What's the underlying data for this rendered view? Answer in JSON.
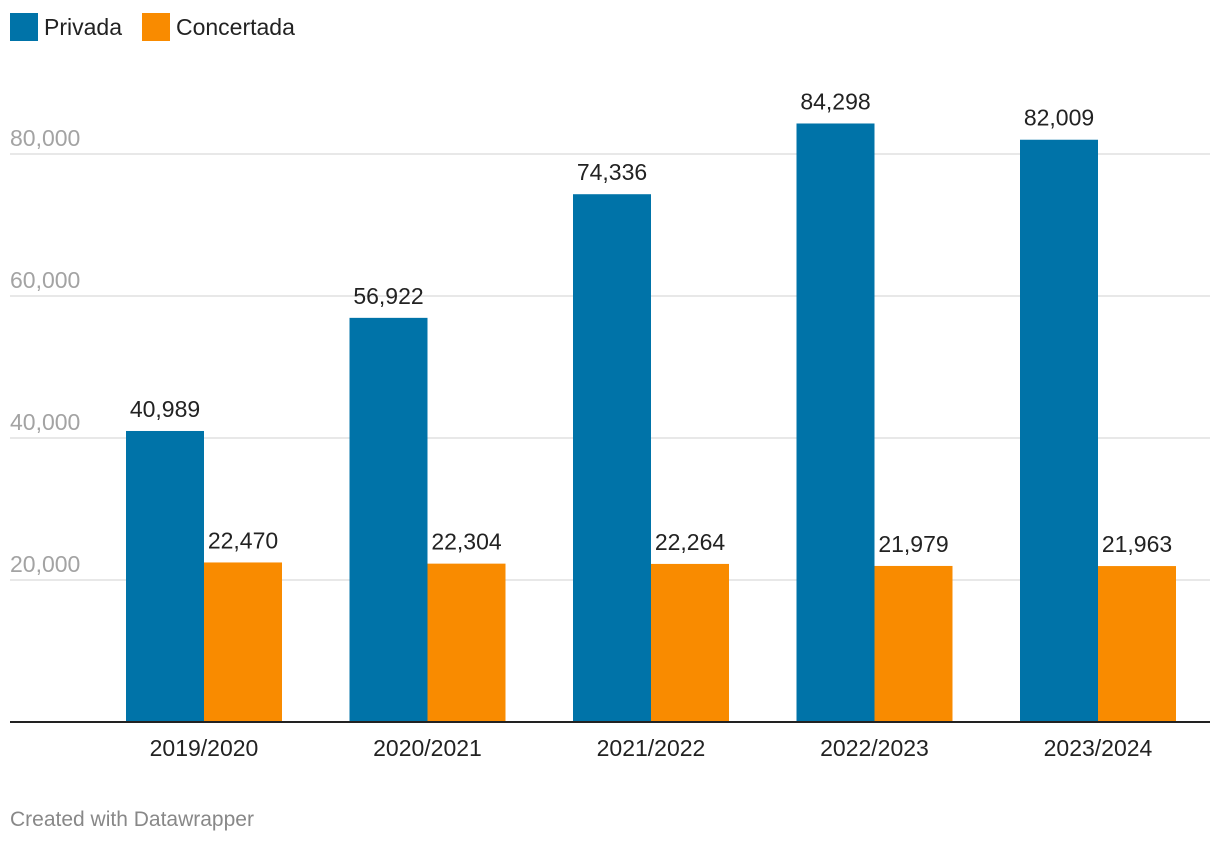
{
  "legend": {
    "items": [
      {
        "label": "Privada",
        "color": "#0073a8"
      },
      {
        "label": "Concertada",
        "color": "#f98b00"
      }
    ]
  },
  "footer": {
    "credit": "Created with Datawrapper"
  },
  "chart_data": {
    "type": "bar",
    "title": "",
    "xlabel": "",
    "ylabel": "",
    "categories": [
      "2019/2020",
      "2020/2021",
      "2021/2022",
      "2022/2023",
      "2023/2024"
    ],
    "series": [
      {
        "name": "Privada",
        "color": "#0073a8",
        "values": [
          40989,
          56922,
          74336,
          84298,
          82009
        ],
        "labels": [
          "40,989",
          "56,922",
          "74,336",
          "84,298",
          "82,009"
        ]
      },
      {
        "name": "Concertada",
        "color": "#f98b00",
        "values": [
          22470,
          22304,
          22264,
          21979,
          21963
        ],
        "labels": [
          "22,470",
          "22,304",
          "22,264",
          "21,979",
          "21,963"
        ]
      }
    ],
    "ylim": [
      0,
      88000
    ],
    "yticks": [
      20000,
      40000,
      60000,
      80000
    ],
    "ytick_labels": [
      "20,000",
      "40,000",
      "60,000",
      "80,000"
    ],
    "grid": true,
    "legend_position": "top-left"
  }
}
